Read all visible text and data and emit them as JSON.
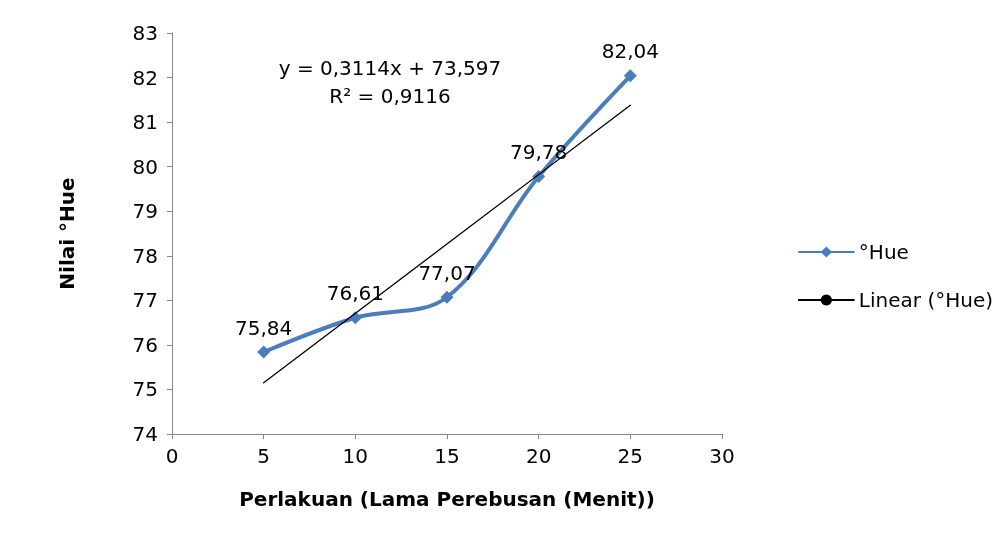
{
  "chart_data": {
    "type": "line",
    "xlabel": "Perlakuan (Lama Perebusan (Menit))",
    "ylabel": "Nilai °Hue",
    "x": [
      5,
      10,
      15,
      20,
      25
    ],
    "series": [
      {
        "name": "°Hue",
        "color": "#4a7ebb",
        "values": [
          75.84,
          76.61,
          77.07,
          79.78,
          82.04
        ],
        "value_labels": [
          "75,84",
          "76,61",
          "77,07",
          "79,78",
          "82,04"
        ],
        "marker": "diamond",
        "line_style": "solid"
      },
      {
        "name": "Linear (°Hue)",
        "type": "line",
        "color": "#000000",
        "x": [
          5,
          25
        ],
        "values": [
          75.15,
          81.38
        ],
        "marker": "none",
        "line_style": "solid"
      }
    ],
    "annotations": [
      "y = 0,3114x + 73,597",
      "R² = 0,9116"
    ],
    "xlim": [
      0,
      30
    ],
    "xticks": [
      0,
      5,
      10,
      15,
      20,
      25,
      30
    ],
    "ylim": [
      74,
      83
    ],
    "yticks": [
      74,
      75,
      76,
      77,
      78,
      79,
      80,
      81,
      82,
      83
    ],
    "grid": false,
    "legend": "right"
  }
}
